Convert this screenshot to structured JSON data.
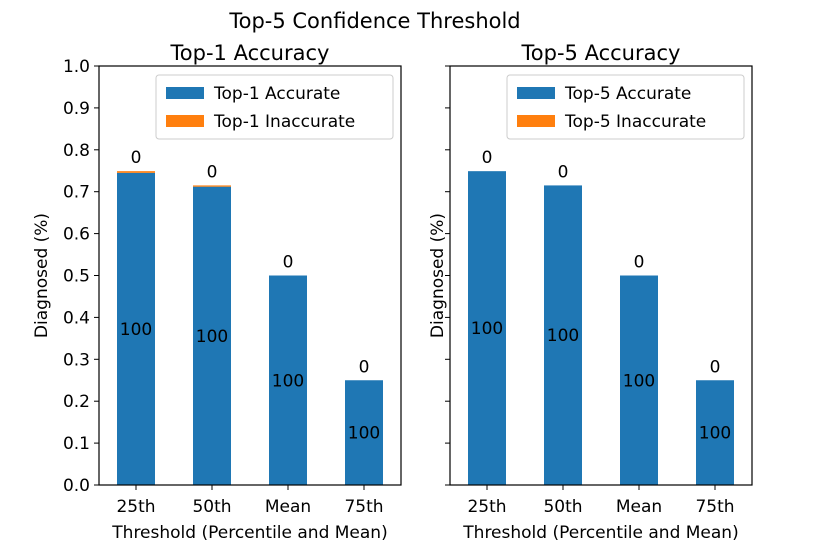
{
  "suptitle": "Top-5 Confidence Threshold",
  "colors": {
    "accurate": "#1f77b4",
    "inaccurate": "#ff7f0e"
  },
  "chart_data": [
    {
      "type": "bar",
      "stacked": true,
      "title": "Top-1 Accuracy",
      "xlabel": "Threshold (Percentile and Mean)",
      "ylabel": "Diagnosed (%)",
      "ylim": [
        0,
        1.0
      ],
      "yticks": [
        "0.0",
        "0.1",
        "0.2",
        "0.3",
        "0.4",
        "0.5",
        "0.6",
        "0.7",
        "0.8",
        "0.9",
        "1.0"
      ],
      "categories": [
        "25th",
        "50th",
        "Mean",
        "75th"
      ],
      "series": [
        {
          "name": "Top-1 Accurate",
          "values": [
            0.745,
            0.712,
            0.5,
            0.25
          ]
        },
        {
          "name": "Top-1 Inaccurate",
          "values": [
            0.004,
            0.003,
            0.0,
            0.0
          ]
        }
      ],
      "bar_labels_accurate": [
        "100",
        "100",
        "100",
        "100"
      ],
      "bar_labels_inaccurate": [
        "0",
        "0",
        "0",
        "0"
      ],
      "legend": "top-right",
      "grid": false
    },
    {
      "type": "bar",
      "stacked": true,
      "title": "Top-5 Accuracy",
      "xlabel": "Threshold (Percentile and Mean)",
      "ylabel": "Diagnosed (%)",
      "ylim": [
        0,
        1.0
      ],
      "categories": [
        "25th",
        "50th",
        "Mean",
        "75th"
      ],
      "series": [
        {
          "name": "Top-5 Accurate",
          "values": [
            0.749,
            0.715,
            0.5,
            0.25
          ]
        },
        {
          "name": "Top-5 Inaccurate",
          "values": [
            0.0,
            0.0,
            0.0,
            0.0
          ]
        }
      ],
      "bar_labels_accurate": [
        "100",
        "100",
        "100",
        "100"
      ],
      "bar_labels_inaccurate": [
        "0",
        "0",
        "0",
        "0"
      ],
      "legend": "top-right",
      "grid": false
    }
  ]
}
